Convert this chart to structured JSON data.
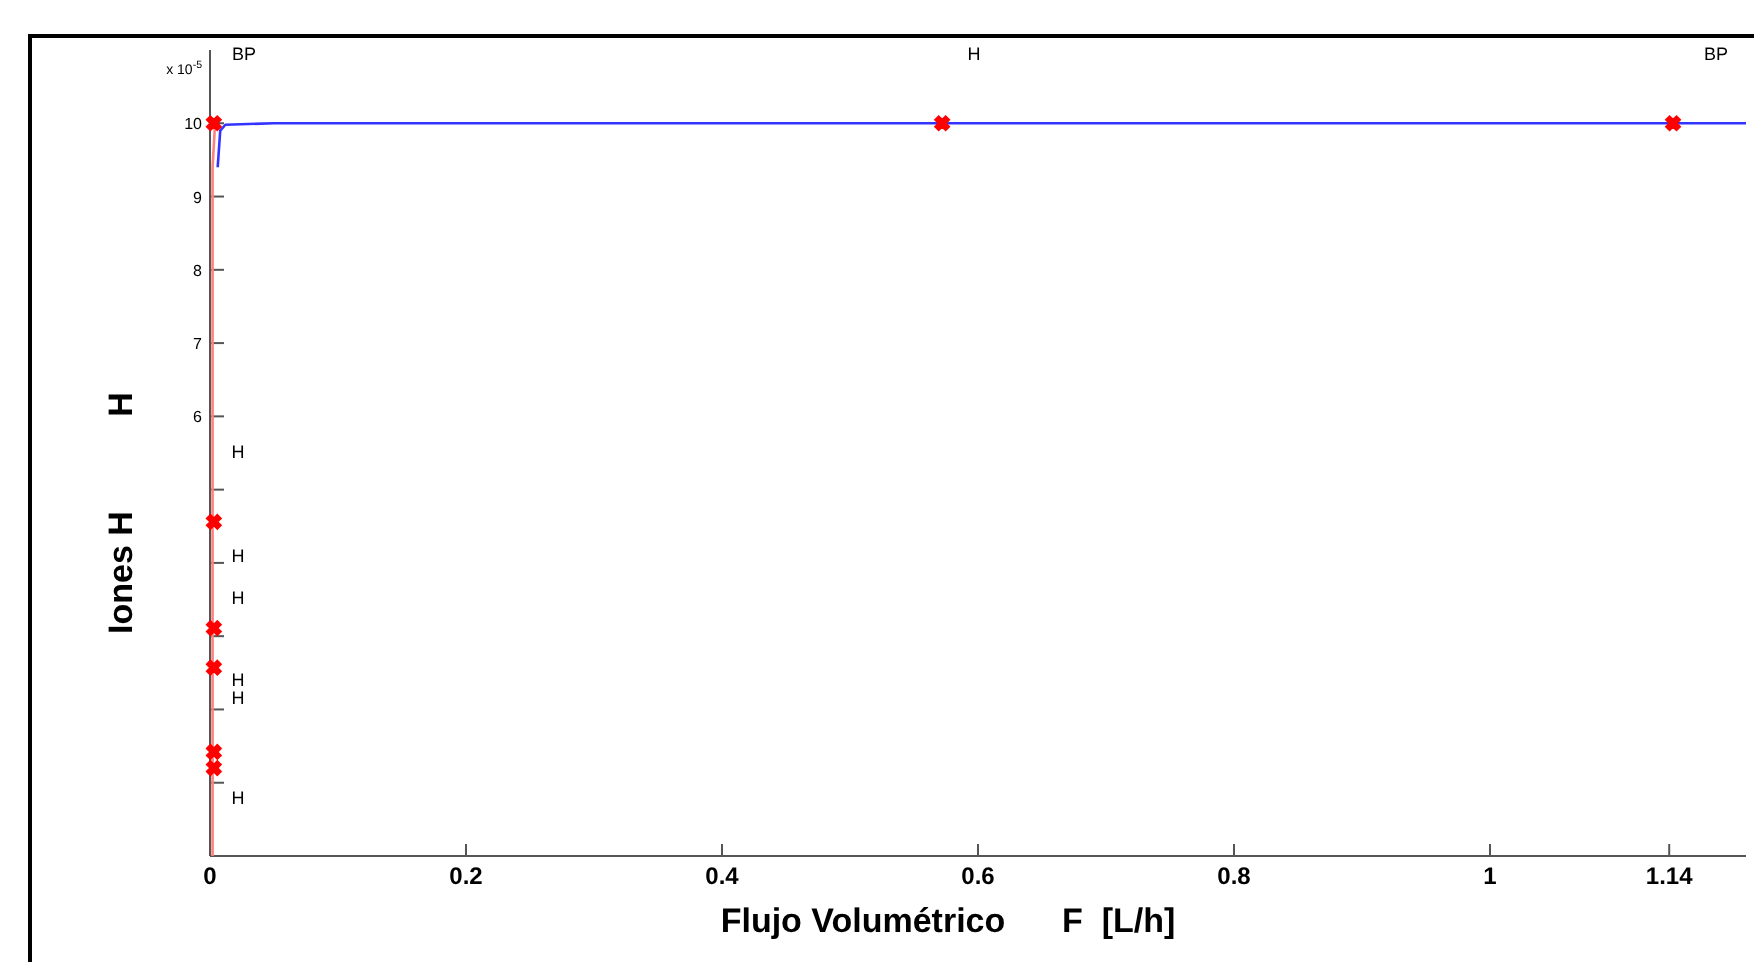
{
  "chart_data": {
    "type": "line",
    "xlabel": "Flujo Volumétrico      F  [L/h]",
    "ylabel": "Iones H          H",
    "xlim": [
      0,
      1.2
    ],
    "xticks": [
      0,
      0.2,
      0.4,
      0.6,
      0.8,
      1,
      1.14
    ],
    "ylim": [
      0,
      11
    ],
    "yticks": [
      {
        "value": 1,
        "label": null
      },
      {
        "value": 2,
        "label": null
      },
      {
        "value": 3,
        "label": null
      },
      {
        "value": 4,
        "label": null
      },
      {
        "value": 5,
        "label": null
      },
      6,
      7,
      8,
      9,
      10
    ],
    "grid": false,
    "series": [
      {
        "color": "#ff8080",
        "x": [
          0.002,
          0.002,
          0.004
        ],
        "values": [
          0,
          9.4,
          10
        ]
      },
      {
        "color": "#3333ff",
        "x": [
          0.006,
          0.008,
          0.012,
          0.05,
          1.2
        ],
        "values": [
          9.4,
          9.9,
          9.98,
          10,
          10
        ]
      },
      {
        "type": "scatter",
        "color": "#ff0000",
        "marker": "cross",
        "x": [
          0.003,
          0.003,
          0.003,
          0.003,
          0.003,
          0.003,
          0.572,
          1.143
        ],
        "values": [
          10,
          4.56,
          3.11,
          2.57,
          1.42,
          1.2,
          10,
          10
        ]
      }
    ],
    "annotations": [
      "x 10$^{-5}$",
      "BP",
      "H",
      "BP",
      "H",
      "H",
      "H",
      "H",
      "H",
      "H"
    ]
  }
}
